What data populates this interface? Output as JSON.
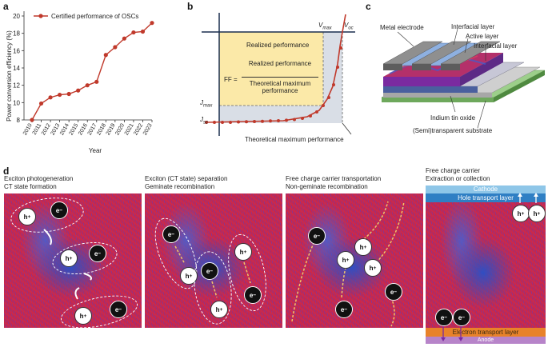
{
  "panels": {
    "a": "a",
    "b": "b",
    "c": "c",
    "d": "d"
  },
  "panel_a": {
    "legend": "Certified performance of OSCs",
    "ylabel": "Power conversion efficiency (%)",
    "xlabel": "Year",
    "series_color": "#c0392b"
  },
  "chart_data": {
    "type": "line",
    "title": "",
    "xlabel": "Year",
    "ylabel": "Power conversion efficiency (%)",
    "x": [
      "2010",
      "2011",
      "2012",
      "2013",
      "2014",
      "2015",
      "2016",
      "2017",
      "2018",
      "2019",
      "2020",
      "2021",
      "2022",
      "2023"
    ],
    "series": [
      {
        "name": "Certified performance of OSCs",
        "values": [
          8.0,
          9.9,
          10.6,
          10.9,
          11.0,
          11.4,
          12.0,
          12.4,
          15.5,
          16.4,
          17.4,
          18.1,
          18.2,
          19.2
        ]
      }
    ],
    "yticks": [
      "8",
      "10",
      "12",
      "14",
      "16",
      "18",
      "20"
    ],
    "ylim": [
      8,
      20
    ],
    "grid": false,
    "legend": "top-left"
  },
  "panel_b": {
    "vmax": "V",
    "vmax_sub": "max",
    "voc": "V",
    "voc_sub": "oc",
    "jmax": "J",
    "jmax_sub": "max",
    "jsc": "J",
    "jsc_sub": "sc",
    "realized": "Realized performance",
    "ff_label": "FF =",
    "ff_num": "Realized performance",
    "ff_den": "Theoretical maximum performance",
    "theoretical": "Theoretical maximum performance"
  },
  "panel_c": {
    "metal": "Metal electrode",
    "interfacial_top": "Interfacial layer",
    "active": "Active layer",
    "interfacial_2": "Interfacial layer",
    "ito": "Indium tin oxide",
    "substrate": "(Semi)transparent substrate"
  },
  "panel_d": {
    "sub1_line1": "Exciton photogeneration",
    "sub1_line2": "CT state formation",
    "sub2_line1": "Exciton (CT state) separation",
    "sub2_line2": "Geminate recombination",
    "sub3_line1": "Free charge carrier transportation",
    "sub3_line2": "Non-geminate recombination",
    "sub4_line1": "Free charge carrier",
    "sub4_line2": "Extraction or collection",
    "cathode": "Cathode",
    "htl": "Hole transport layer",
    "etl": "Electron transport layer",
    "anode": "Anode",
    "hole": "h",
    "electron": "e",
    "hole_sign": "+",
    "electron_sign": "−"
  }
}
